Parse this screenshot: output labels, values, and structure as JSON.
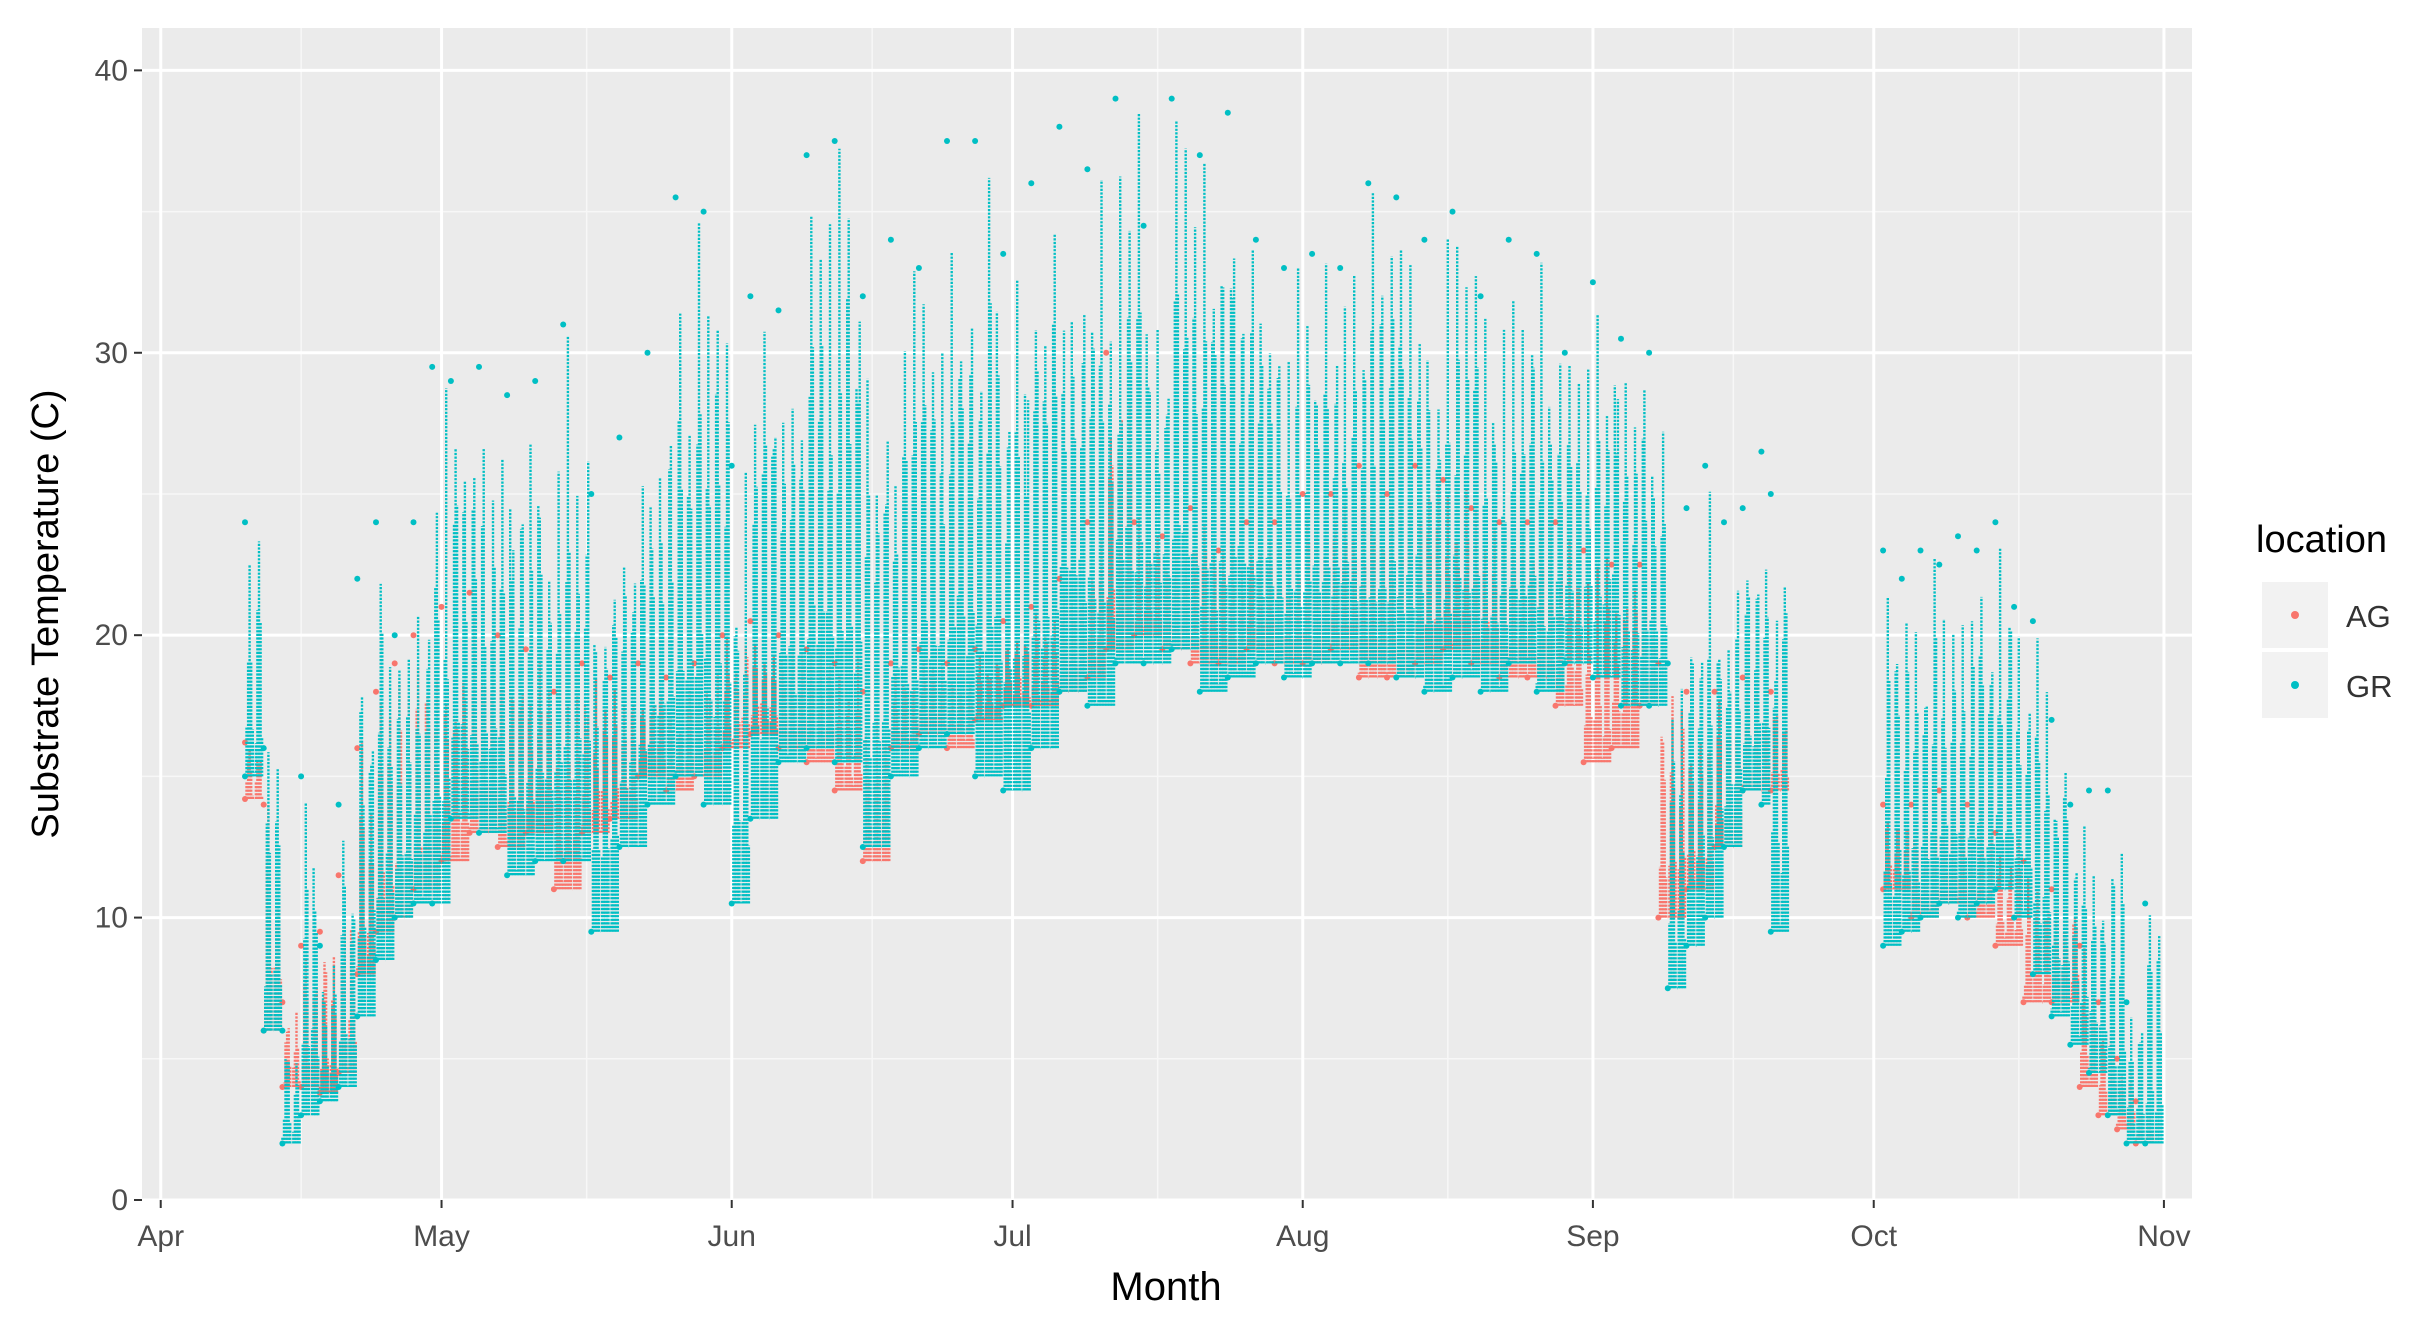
{
  "chart_data": {
    "type": "scatter",
    "title": "",
    "xlabel": "Month",
    "ylabel": "Substrate Temperature (C)",
    "x_ticks": [
      "Apr",
      "May",
      "Jun",
      "Jul",
      "Aug",
      "Sep",
      "Oct",
      "Nov"
    ],
    "y_ticks": [
      "0",
      "10",
      "20",
      "30",
      "40"
    ],
    "xlim": [
      "2019-03-30",
      "2019-11-04"
    ],
    "ylim": [
      0,
      41.5
    ],
    "grid": true,
    "legend": {
      "title": "location",
      "position": "right"
    },
    "series": [
      {
        "name": "AG",
        "color": "#F8766D",
        "points": [
          [
            "2019-04-10",
            14.2,
            16.2
          ],
          [
            "2019-04-12",
            6.0,
            14.0
          ],
          [
            "2019-04-14",
            4.0,
            7.0
          ],
          [
            "2019-04-16",
            4.0,
            9.0
          ],
          [
            "2019-04-18",
            3.8,
            9.5
          ],
          [
            "2019-04-20",
            4.5,
            11.5
          ],
          [
            "2019-04-22",
            8.0,
            16.0
          ],
          [
            "2019-04-24",
            9.5,
            18.0
          ],
          [
            "2019-04-26",
            10.0,
            19.0
          ],
          [
            "2019-04-28",
            11.0,
            20.0
          ],
          [
            "2019-05-01",
            12.0,
            21.0
          ],
          [
            "2019-05-04",
            13.0,
            21.5
          ],
          [
            "2019-05-07",
            12.5,
            20.0
          ],
          [
            "2019-05-10",
            13.0,
            19.5
          ],
          [
            "2019-05-13",
            11.0,
            18.0
          ],
          [
            "2019-05-16",
            13.0,
            19.0
          ],
          [
            "2019-05-19",
            13.5,
            18.5
          ],
          [
            "2019-05-22",
            15.0,
            19.0
          ],
          [
            "2019-05-25",
            14.5,
            18.5
          ],
          [
            "2019-05-28",
            15.0,
            19.0
          ],
          [
            "2019-05-31",
            16.0,
            20.0
          ],
          [
            "2019-06-03",
            16.5,
            20.5
          ],
          [
            "2019-06-06",
            16.0,
            20.0
          ],
          [
            "2019-06-09",
            15.5,
            19.5
          ],
          [
            "2019-06-12",
            14.5,
            19.0
          ],
          [
            "2019-06-15",
            12.0,
            18.0
          ],
          [
            "2019-06-18",
            16.0,
            19.0
          ],
          [
            "2019-06-21",
            16.5,
            19.5
          ],
          [
            "2019-06-24",
            16.0,
            19.0
          ],
          [
            "2019-06-27",
            17.0,
            19.5
          ],
          [
            "2019-06-30",
            17.5,
            20.5
          ],
          [
            "2019-07-03",
            17.5,
            21.0
          ],
          [
            "2019-07-06",
            18.0,
            22.0
          ],
          [
            "2019-07-09",
            18.5,
            24.0
          ],
          [
            "2019-07-11",
            19.5,
            30.0
          ],
          [
            "2019-07-14",
            20.0,
            24.0
          ],
          [
            "2019-07-17",
            19.5,
            23.5
          ],
          [
            "2019-07-20",
            19.0,
            24.5
          ],
          [
            "2019-07-23",
            19.0,
            23.0
          ],
          [
            "2019-07-26",
            19.5,
            24.0
          ],
          [
            "2019-07-29",
            19.0,
            24.0
          ],
          [
            "2019-08-01",
            19.0,
            25.0
          ],
          [
            "2019-08-04",
            19.5,
            25.0
          ],
          [
            "2019-08-07",
            18.5,
            26.0
          ],
          [
            "2019-08-10",
            18.5,
            25.0
          ],
          [
            "2019-08-13",
            19.0,
            26.0
          ],
          [
            "2019-08-16",
            19.5,
            25.5
          ],
          [
            "2019-08-19",
            19.0,
            24.5
          ],
          [
            "2019-08-22",
            18.5,
            24.0
          ],
          [
            "2019-08-25",
            18.5,
            24.0
          ],
          [
            "2019-08-28",
            17.5,
            24.0
          ],
          [
            "2019-08-31",
            15.5,
            23.0
          ],
          [
            "2019-09-03",
            16.0,
            22.5
          ],
          [
            "2019-09-06",
            17.5,
            22.5
          ],
          [
            "2019-09-08",
            10.0,
            19.0
          ],
          [
            "2019-09-11",
            11.0,
            18.0
          ],
          [
            "2019-09-14",
            12.5,
            18.0
          ],
          [
            "2019-09-17",
            14.5,
            18.5
          ],
          [
            "2019-09-20",
            14.5,
            18.0
          ],
          [
            "2019-10-02",
            11.0,
            14.0
          ],
          [
            "2019-10-05",
            10.0,
            14.0
          ],
          [
            "2019-10-08",
            10.5,
            14.5
          ],
          [
            "2019-10-11",
            10.0,
            14.0
          ],
          [
            "2019-10-14",
            9.0,
            13.0
          ],
          [
            "2019-10-17",
            7.0,
            12.0
          ],
          [
            "2019-10-20",
            7.0,
            11.0
          ],
          [
            "2019-10-23",
            4.0,
            9.0
          ],
          [
            "2019-10-25",
            3.0,
            7.0
          ],
          [
            "2019-10-27",
            2.5,
            5.0
          ],
          [
            "2019-10-29",
            2.0,
            3.5
          ]
        ]
      },
      {
        "name": "GR",
        "color": "#00BFC4",
        "points": [
          [
            "2019-04-10",
            15.0,
            24.0
          ],
          [
            "2019-04-12",
            6.0,
            16.0
          ],
          [
            "2019-04-14",
            2.0,
            6.0
          ],
          [
            "2019-04-16",
            3.0,
            15.0
          ],
          [
            "2019-04-18",
            3.5,
            9.0
          ],
          [
            "2019-04-20",
            4.0,
            14.0
          ],
          [
            "2019-04-22",
            6.5,
            22.0
          ],
          [
            "2019-04-24",
            8.5,
            24.0
          ],
          [
            "2019-04-26",
            10.0,
            20.0
          ],
          [
            "2019-04-28",
            10.5,
            24.0
          ],
          [
            "2019-04-30",
            10.5,
            29.5
          ],
          [
            "2019-05-02",
            13.5,
            29.0
          ],
          [
            "2019-05-05",
            13.0,
            29.5
          ],
          [
            "2019-05-08",
            11.5,
            28.5
          ],
          [
            "2019-05-11",
            12.0,
            29.0
          ],
          [
            "2019-05-14",
            12.0,
            31.0
          ],
          [
            "2019-05-17",
            9.5,
            25.0
          ],
          [
            "2019-05-20",
            12.5,
            27.0
          ],
          [
            "2019-05-23",
            14.0,
            30.0
          ],
          [
            "2019-05-26",
            15.0,
            35.5
          ],
          [
            "2019-05-29",
            14.0,
            35.0
          ],
          [
            "2019-06-01",
            10.5,
            26.0
          ],
          [
            "2019-06-03",
            13.5,
            32.0
          ],
          [
            "2019-06-06",
            15.5,
            31.5
          ],
          [
            "2019-06-09",
            16.0,
            37.0
          ],
          [
            "2019-06-12",
            15.5,
            37.5
          ],
          [
            "2019-06-15",
            12.5,
            32.0
          ],
          [
            "2019-06-18",
            15.0,
            34.0
          ],
          [
            "2019-06-21",
            16.0,
            33.0
          ],
          [
            "2019-06-24",
            16.5,
            37.5
          ],
          [
            "2019-06-27",
            15.0,
            37.5
          ],
          [
            "2019-06-30",
            14.5,
            33.5
          ],
          [
            "2019-07-03",
            16.0,
            36.0
          ],
          [
            "2019-07-06",
            18.0,
            38.0
          ],
          [
            "2019-07-09",
            17.5,
            36.5
          ],
          [
            "2019-07-12",
            19.0,
            39.0
          ],
          [
            "2019-07-15",
            19.0,
            34.5
          ],
          [
            "2019-07-18",
            19.5,
            39.0
          ],
          [
            "2019-07-21",
            18.0,
            37.0
          ],
          [
            "2019-07-24",
            18.5,
            38.5
          ],
          [
            "2019-07-27",
            19.0,
            34.0
          ],
          [
            "2019-07-30",
            18.5,
            33.0
          ],
          [
            "2019-08-02",
            19.0,
            33.5
          ],
          [
            "2019-08-05",
            19.0,
            33.0
          ],
          [
            "2019-08-08",
            19.0,
            36.0
          ],
          [
            "2019-08-11",
            18.5,
            35.5
          ],
          [
            "2019-08-14",
            18.0,
            34.0
          ],
          [
            "2019-08-17",
            18.5,
            35.0
          ],
          [
            "2019-08-20",
            18.0,
            32.0
          ],
          [
            "2019-08-23",
            19.0,
            34.0
          ],
          [
            "2019-08-26",
            18.0,
            33.5
          ],
          [
            "2019-08-29",
            19.0,
            30.0
          ],
          [
            "2019-09-01",
            18.5,
            32.5
          ],
          [
            "2019-09-04",
            17.5,
            30.5
          ],
          [
            "2019-09-07",
            17.5,
            30.0
          ],
          [
            "2019-09-09",
            7.5,
            19.0
          ],
          [
            "2019-09-11",
            9.0,
            24.5
          ],
          [
            "2019-09-13",
            10.0,
            26.0
          ],
          [
            "2019-09-15",
            12.5,
            24.0
          ],
          [
            "2019-09-17",
            14.5,
            24.5
          ],
          [
            "2019-09-19",
            14.0,
            26.5
          ],
          [
            "2019-09-20",
            9.5,
            25.0
          ],
          [
            "2019-10-02",
            9.0,
            23.0
          ],
          [
            "2019-10-04",
            9.5,
            22.0
          ],
          [
            "2019-10-06",
            10.0,
            23.0
          ],
          [
            "2019-10-08",
            10.5,
            22.5
          ],
          [
            "2019-10-10",
            10.0,
            23.5
          ],
          [
            "2019-10-12",
            10.5,
            23.0
          ],
          [
            "2019-10-14",
            11.0,
            24.0
          ],
          [
            "2019-10-16",
            10.0,
            21.0
          ],
          [
            "2019-10-18",
            8.0,
            20.5
          ],
          [
            "2019-10-20",
            6.5,
            17.0
          ],
          [
            "2019-10-22",
            5.5,
            14.0
          ],
          [
            "2019-10-24",
            4.5,
            14.5
          ],
          [
            "2019-10-26",
            3.0,
            14.5
          ],
          [
            "2019-10-28",
            2.0,
            7.0
          ],
          [
            "2019-10-30",
            2.0,
            10.5
          ]
        ]
      }
    ]
  }
}
